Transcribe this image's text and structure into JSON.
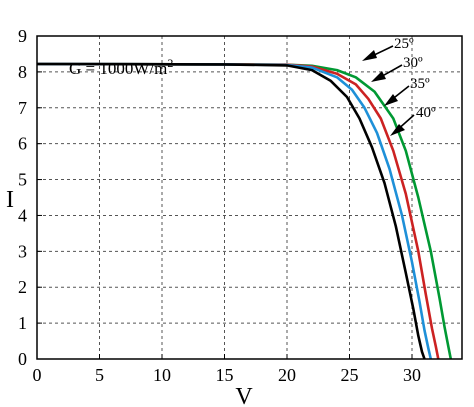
{
  "chart_data": {
    "type": "line",
    "xlabel": "V",
    "ylabel": "I",
    "xlim": [
      0,
      34
    ],
    "ylim": [
      0,
      9
    ],
    "xticks": [
      0,
      5,
      10,
      15,
      20,
      25,
      30
    ],
    "yticks": [
      0,
      1,
      2,
      3,
      4,
      5,
      6,
      7,
      8,
      9
    ],
    "grid": true,
    "annotation": {
      "prefix": "G = 1000W/m",
      "sup": "2"
    },
    "series": [
      {
        "name": "25º",
        "color": "#009933",
        "points": [
          [
            0,
            8.22
          ],
          [
            15,
            8.21
          ],
          [
            20,
            8.2
          ],
          [
            22,
            8.17
          ],
          [
            24,
            8.05
          ],
          [
            25.5,
            7.85
          ],
          [
            27,
            7.45
          ],
          [
            28.5,
            6.7
          ],
          [
            29.5,
            5.8
          ],
          [
            30.5,
            4.5
          ],
          [
            31.5,
            3.0
          ],
          [
            32.2,
            1.7
          ],
          [
            32.6,
            0.9
          ],
          [
            32.9,
            0.35
          ],
          [
            33.1,
            0
          ]
        ]
      },
      {
        "name": "30º",
        "color": "#cc2222",
        "points": [
          [
            0,
            8.22
          ],
          [
            15,
            8.21
          ],
          [
            20,
            8.2
          ],
          [
            22,
            8.15
          ],
          [
            24,
            7.95
          ],
          [
            25.5,
            7.65
          ],
          [
            26.5,
            7.25
          ],
          [
            27.5,
            6.7
          ],
          [
            28.5,
            5.8
          ],
          [
            29.5,
            4.6
          ],
          [
            30.5,
            3.0
          ],
          [
            31.1,
            1.8
          ],
          [
            31.6,
            0.85
          ],
          [
            31.9,
            0.35
          ],
          [
            32.1,
            0
          ]
        ]
      },
      {
        "name": "35º",
        "color": "#1e90d8",
        "points": [
          [
            0,
            8.22
          ],
          [
            15,
            8.21
          ],
          [
            20,
            8.19
          ],
          [
            22,
            8.12
          ],
          [
            24,
            7.85
          ],
          [
            25.2,
            7.5
          ],
          [
            26.2,
            7.0
          ],
          [
            27.2,
            6.3
          ],
          [
            28.2,
            5.3
          ],
          [
            29.2,
            4.0
          ],
          [
            30,
            2.7
          ],
          [
            30.6,
            1.6
          ],
          [
            31,
            0.8
          ],
          [
            31.3,
            0.3
          ],
          [
            31.5,
            0
          ]
        ]
      },
      {
        "name": "40º",
        "color": "#000000",
        "points": [
          [
            0,
            8.22
          ],
          [
            15,
            8.21
          ],
          [
            20,
            8.18
          ],
          [
            22,
            8.05
          ],
          [
            23.5,
            7.75
          ],
          [
            24.8,
            7.3
          ],
          [
            25.8,
            6.7
          ],
          [
            26.8,
            5.9
          ],
          [
            27.8,
            4.9
          ],
          [
            28.7,
            3.7
          ],
          [
            29.5,
            2.4
          ],
          [
            30.1,
            1.4
          ],
          [
            30.5,
            0.65
          ],
          [
            30.8,
            0.2
          ],
          [
            31,
            0
          ]
        ]
      }
    ]
  },
  "labels": {
    "temp1": "25º",
    "temp2": "30º",
    "temp3": "35º",
    "temp4": "40º"
  }
}
